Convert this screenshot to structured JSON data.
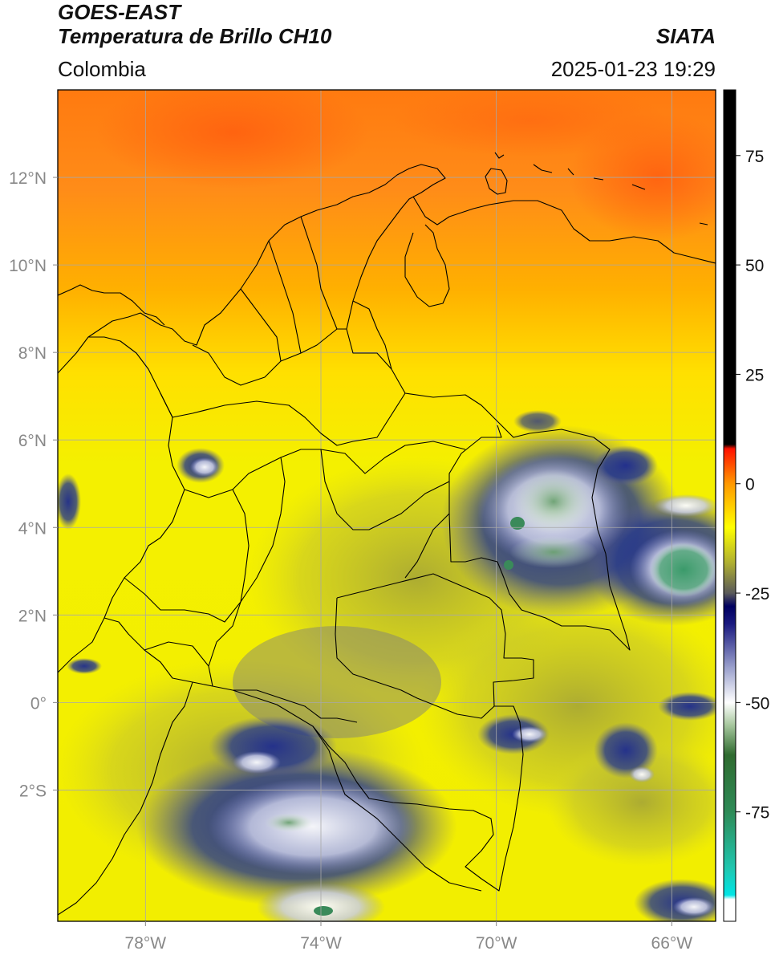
{
  "header": {
    "satellite": "GOES-EAST",
    "product": "Temperatura de Brillo CH10",
    "region": "Colombia",
    "source": "SIATA",
    "timestamp": "2025-01-23 19:29"
  },
  "map": {
    "lon_range": [
      -80,
      -65
    ],
    "lat_range": [
      -5,
      14
    ],
    "lon_ticks": [
      {
        "value": -78,
        "label": "78°W"
      },
      {
        "value": -74,
        "label": "74°W"
      },
      {
        "value": -70,
        "label": "70°W"
      },
      {
        "value": -66,
        "label": "66°W"
      }
    ],
    "lat_ticks": [
      {
        "value": 12,
        "label": "12°N"
      },
      {
        "value": 10,
        "label": "10°N"
      },
      {
        "value": 8,
        "label": "8°N"
      },
      {
        "value": 6,
        "label": "6°N"
      },
      {
        "value": 4,
        "label": "4°N"
      },
      {
        "value": 2,
        "label": "2°N"
      },
      {
        "value": 0,
        "label": "0°"
      },
      {
        "value": -2,
        "label": "2°S"
      }
    ],
    "gridlines": true,
    "gridline_color": "#a8a8a8",
    "boundary_color": "#000000"
  },
  "colorbar": {
    "range": [
      -100,
      90
    ],
    "ticks": [
      {
        "value": 75,
        "label": "75"
      },
      {
        "value": 50,
        "label": "50"
      },
      {
        "value": 25,
        "label": "25"
      },
      {
        "value": 0,
        "label": "0"
      },
      {
        "value": -25,
        "label": "-25"
      },
      {
        "value": -50,
        "label": "-50"
      },
      {
        "value": -75,
        "label": "-75"
      }
    ],
    "stops": [
      {
        "value": -100,
        "color": "#ffffff"
      },
      {
        "value": -95,
        "color": "#ffffff"
      },
      {
        "value": -94,
        "color": "#00e5e5"
      },
      {
        "value": -88,
        "color": "#1fc7b0"
      },
      {
        "value": -75,
        "color": "#2e8b57"
      },
      {
        "value": -62,
        "color": "#2f6b2f"
      },
      {
        "value": -55,
        "color": "#a9c9a0"
      },
      {
        "value": -50,
        "color": "#ffffff"
      },
      {
        "value": -42,
        "color": "#9aa0cc"
      },
      {
        "value": -32,
        "color": "#1a1a80"
      },
      {
        "value": -28,
        "color": "#000060"
      },
      {
        "value": -25,
        "color": "#5a5a5a"
      },
      {
        "value": -18,
        "color": "#b0b030"
      },
      {
        "value": -10,
        "color": "#ffff00"
      },
      {
        "value": 0,
        "color": "#ff9900"
      },
      {
        "value": 8,
        "color": "#ff1100"
      },
      {
        "value": 9,
        "color": "#000000"
      },
      {
        "value": 90,
        "color": "#000000"
      }
    ]
  }
}
